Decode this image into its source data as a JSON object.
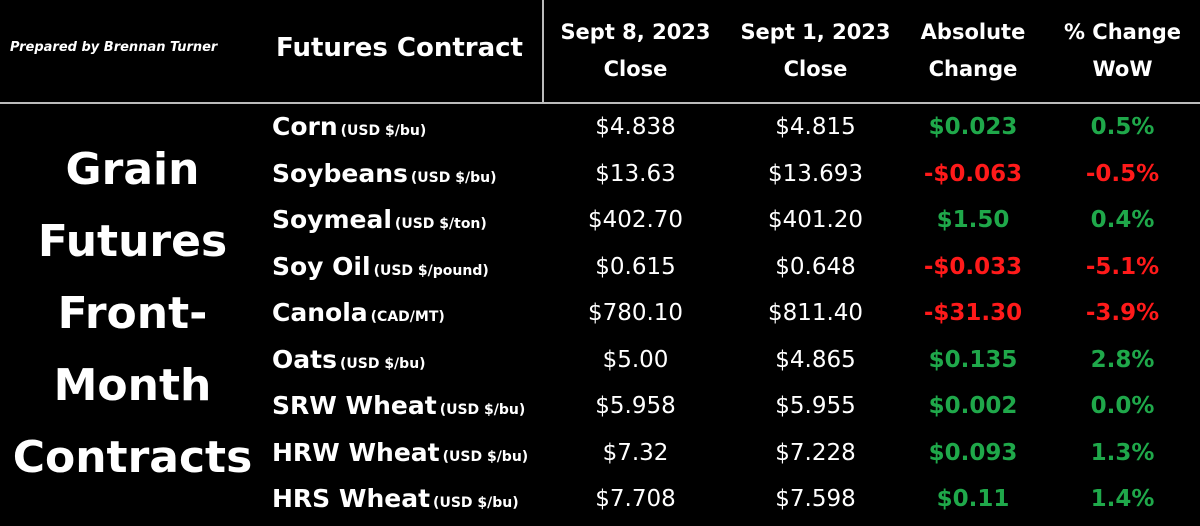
{
  "prepared_by": "Prepared by Brennan Turner",
  "title_lines": [
    "Grain",
    "Futures",
    "Front-",
    "Month",
    "Contracts"
  ],
  "headers": {
    "contract": "Futures Contract",
    "close_current": [
      "Sept 8, 2023",
      "Close"
    ],
    "close_previous": [
      "Sept 1, 2023",
      "Close"
    ],
    "absolute_change": [
      "Absolute",
      "Change"
    ],
    "percent_change": [
      "% Change",
      "WoW"
    ]
  },
  "colors": {
    "positive": "#1fa84a",
    "negative": "#ff1a1a"
  },
  "chart_data": {
    "type": "table",
    "columns": [
      "Futures Contract",
      "Sept 8, 2023 Close",
      "Sept 1, 2023 Close",
      "Absolute Change",
      "% Change WoW"
    ],
    "rows": [
      {
        "name": "Corn",
        "unit": "(USD $/bu)",
        "close_current": "$4.838",
        "close_previous": "$4.815",
        "abs_change": "$0.023",
        "pct_change": "0.5%",
        "direction": "pos"
      },
      {
        "name": "Soybeans",
        "unit": "(USD $/bu)",
        "close_current": "$13.63",
        "close_previous": "$13.693",
        "abs_change": "-$0.063",
        "pct_change": "-0.5%",
        "direction": "neg"
      },
      {
        "name": "Soymeal",
        "unit": "(USD $/ton)",
        "close_current": "$402.70",
        "close_previous": "$401.20",
        "abs_change": "$1.50",
        "pct_change": "0.4%",
        "direction": "pos"
      },
      {
        "name": "Soy Oil",
        "unit": "(USD $/pound)",
        "close_current": "$0.615",
        "close_previous": "$0.648",
        "abs_change": "-$0.033",
        "pct_change": "-5.1%",
        "direction": "neg"
      },
      {
        "name": "Canola",
        "unit": "(CAD/MT)",
        "close_current": "$780.10",
        "close_previous": "$811.40",
        "abs_change": "-$31.30",
        "pct_change": "-3.9%",
        "direction": "neg"
      },
      {
        "name": "Oats",
        "unit": "(USD $/bu)",
        "close_current": "$5.00",
        "close_previous": "$4.865",
        "abs_change": "$0.135",
        "pct_change": "2.8%",
        "direction": "pos"
      },
      {
        "name": "SRW Wheat",
        "unit": "(USD $/bu)",
        "close_current": "$5.958",
        "close_previous": "$5.955",
        "abs_change": "$0.002",
        "pct_change": "0.0%",
        "direction": "pos"
      },
      {
        "name": "HRW Wheat",
        "unit": "(USD $/bu)",
        "close_current": "$7.32",
        "close_previous": "$7.228",
        "abs_change": "$0.093",
        "pct_change": "1.3%",
        "direction": "pos"
      },
      {
        "name": "HRS Wheat",
        "unit": "(USD $/bu)",
        "close_current": "$7.708",
        "close_previous": "$7.598",
        "abs_change": "$0.11",
        "pct_change": "1.4%",
        "direction": "pos"
      }
    ]
  }
}
